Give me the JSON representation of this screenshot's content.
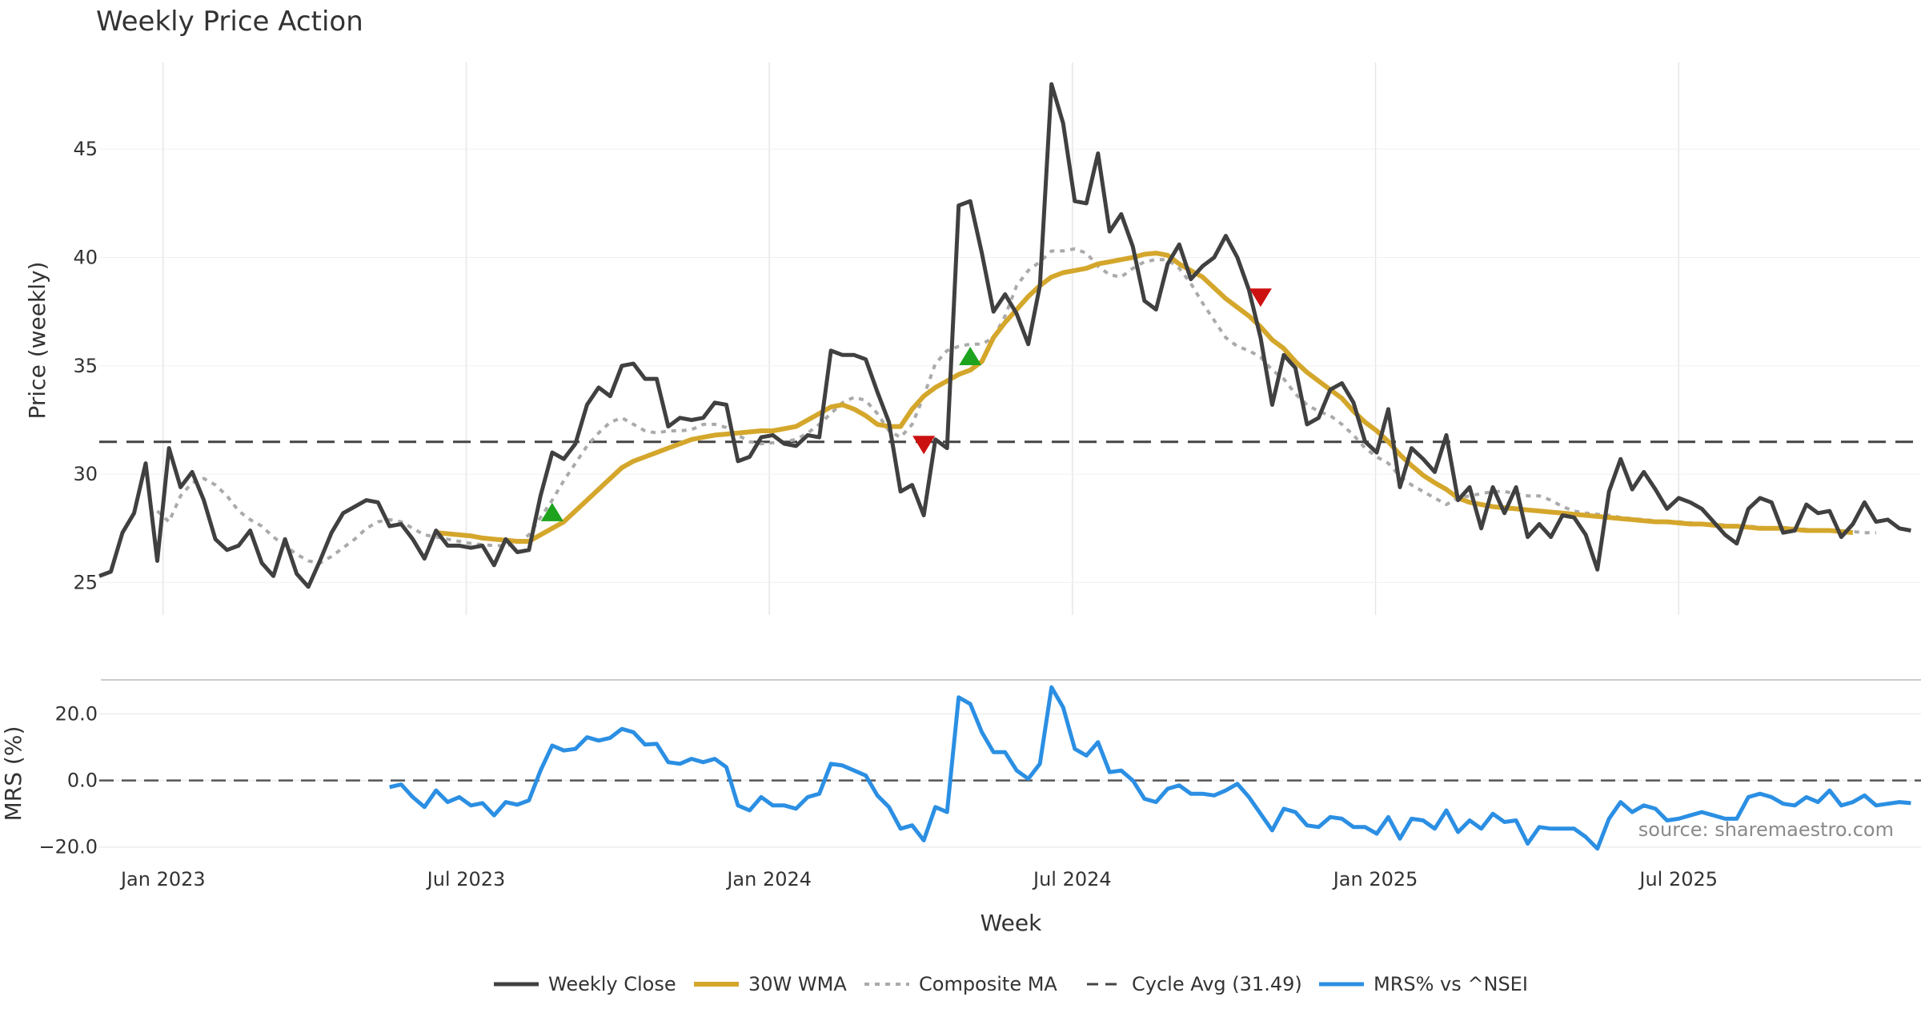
{
  "chart_data": {
    "type": "line",
    "title": "Weekly Price Action",
    "xlabel": "Week",
    "x_ticks": [
      "Jan 2023",
      "Jul 2023",
      "Jan 2024",
      "Jul 2024",
      "Jan 2025",
      "Jul 2025"
    ],
    "source": "source: sharemaestro.com",
    "colors": {
      "close": "#404040",
      "wma": "#d4a72c",
      "composite": "#aaaaaa",
      "cycle": "#444444",
      "mrs": "#2b8fe3",
      "buy": "#1ea31e",
      "sell": "#cc1111",
      "grid": "#e6e6e6"
    },
    "price_panel": {
      "ylabel": "Price (weekly)",
      "ylim": [
        23.5,
        49
      ],
      "y_ticks": [
        "25",
        "30",
        "35",
        "40",
        "45"
      ],
      "weekly_close": [
        25.3,
        25.5,
        27.3,
        28.2,
        30.5,
        26.0,
        31.2,
        29.4,
        30.1,
        28.8,
        27.0,
        26.5,
        26.7,
        27.4,
        25.9,
        25.3,
        27.0,
        25.4,
        24.8,
        26.0,
        27.3,
        28.2,
        28.5,
        28.8,
        28.7,
        27.6,
        27.7,
        27.0,
        26.1,
        27.4,
        26.7,
        26.7,
        26.6,
        26.7,
        25.8,
        27.0,
        26.4,
        26.5,
        29.0,
        31.0,
        30.7,
        31.4,
        33.2,
        34.0,
        33.6,
        35.0,
        35.1,
        34.4,
        34.4,
        32.2,
        32.6,
        32.5,
        32.6,
        33.3,
        33.2,
        30.6,
        30.8,
        31.7,
        31.8,
        31.4,
        31.3,
        31.8,
        31.7,
        35.7,
        35.5,
        35.5,
        35.3,
        33.8,
        32.4,
        29.2,
        29.5,
        28.1,
        31.6,
        31.2,
        42.4,
        42.6,
        40.2,
        37.5,
        38.3,
        37.4,
        36.0,
        38.7,
        48.0,
        46.2,
        42.6,
        42.5,
        44.8,
        41.2,
        42.0,
        40.5,
        38.0,
        37.6,
        39.7,
        40.6,
        39.0,
        39.6,
        40.0,
        41.0,
        40.0,
        38.5,
        36.3,
        33.2,
        35.5,
        34.9,
        32.3,
        32.6,
        33.9,
        34.2,
        33.3,
        31.5,
        31.0,
        33.0,
        29.4,
        31.2,
        30.7,
        30.1,
        31.8,
        28.8,
        29.4,
        27.5,
        29.4,
        28.2,
        29.4,
        27.1,
        27.7,
        27.1,
        28.1,
        28.0,
        27.2,
        25.6,
        29.2,
        30.7,
        29.3,
        30.1,
        29.3,
        28.4,
        28.9,
        28.7,
        28.4,
        27.8,
        27.2,
        26.8,
        28.4,
        28.9,
        28.7,
        27.3,
        27.4,
        28.6,
        28.2,
        28.3,
        27.1,
        27.7,
        28.7,
        27.8,
        27.9,
        27.5,
        27.4
      ],
      "wma_30w": [
        null,
        null,
        null,
        null,
        null,
        null,
        null,
        null,
        null,
        null,
        null,
        null,
        null,
        null,
        null,
        null,
        null,
        null,
        null,
        null,
        null,
        null,
        null,
        null,
        null,
        null,
        null,
        null,
        null,
        27.3,
        27.25,
        27.2,
        27.15,
        27.05,
        27.0,
        26.95,
        26.9,
        26.9,
        27.2,
        27.5,
        27.8,
        28.3,
        28.8,
        29.3,
        29.8,
        30.3,
        30.6,
        30.8,
        31.0,
        31.2,
        31.4,
        31.6,
        31.7,
        31.8,
        31.85,
        31.9,
        31.95,
        32.0,
        32.0,
        32.1,
        32.2,
        32.5,
        32.8,
        33.1,
        33.2,
        33.0,
        32.7,
        32.3,
        32.2,
        32.2,
        33.0,
        33.6,
        34.0,
        34.3,
        34.6,
        34.8,
        35.2,
        36.3,
        37.0,
        37.6,
        38.2,
        38.7,
        39.1,
        39.3,
        39.4,
        39.5,
        39.7,
        39.8,
        39.9,
        40.0,
        40.15,
        40.2,
        40.1,
        39.7,
        39.4,
        39.1,
        38.6,
        38.1,
        37.7,
        37.3,
        36.8,
        36.2,
        35.8,
        35.2,
        34.7,
        34.3,
        33.9,
        33.5,
        32.9,
        32.4,
        32.0,
        31.5,
        30.9,
        30.4,
        29.95,
        29.6,
        29.3,
        28.9,
        28.7,
        28.6,
        28.5,
        28.45,
        28.4,
        28.35,
        28.3,
        28.25,
        28.2,
        28.15,
        28.1,
        28.05,
        28.0,
        27.95,
        27.9,
        27.85,
        27.8,
        27.8,
        27.75,
        27.7,
        27.7,
        27.65,
        27.6,
        27.6,
        27.55,
        27.5,
        27.5,
        27.5,
        27.45,
        27.4,
        27.4,
        27.4,
        27.35,
        27.3
      ],
      "composite_ma": [
        null,
        null,
        null,
        null,
        null,
        28.3,
        27.8,
        29.0,
        29.6,
        29.8,
        29.5,
        29.0,
        28.3,
        27.9,
        27.6,
        27.1,
        26.7,
        26.3,
        26.0,
        25.9,
        26.2,
        26.6,
        27.0,
        27.5,
        27.8,
        27.9,
        27.8,
        27.5,
        27.2,
        27.1,
        27.0,
        26.9,
        26.8,
        26.75,
        26.7,
        26.7,
        26.8,
        27.2,
        28.0,
        28.8,
        29.7,
        30.5,
        31.3,
        31.9,
        32.4,
        32.6,
        32.3,
        32.0,
        31.9,
        32.0,
        32.0,
        32.05,
        32.3,
        32.3,
        32.15,
        31.8,
        31.5,
        31.4,
        31.45,
        31.5,
        31.6,
        31.9,
        32.3,
        32.8,
        33.3,
        33.55,
        33.4,
        32.8,
        32.0,
        31.7,
        32.3,
        33.6,
        35.1,
        35.7,
        35.9,
        36.0,
        36.0,
        36.3,
        37.3,
        38.7,
        39.4,
        39.8,
        40.3,
        40.3,
        40.4,
        40.2,
        39.6,
        39.2,
        39.1,
        39.5,
        39.8,
        39.9,
        39.9,
        39.5,
        38.8,
        37.9,
        37.1,
        36.3,
        35.9,
        35.7,
        35.4,
        34.8,
        34.4,
        33.7,
        33.2,
        32.9,
        32.7,
        32.3,
        31.8,
        31.2,
        30.8,
        30.5,
        29.9,
        29.5,
        29.2,
        28.9,
        28.6,
        28.9,
        29.0,
        29.1,
        29.2,
        29.2,
        29.1,
        29.0,
        29.0,
        28.8,
        28.5,
        28.3,
        28.2,
        28.15,
        28.1,
        28.0,
        27.95,
        27.9,
        27.85,
        27.8,
        27.8,
        27.75,
        27.7,
        27.7,
        27.65,
        27.6,
        27.6,
        27.55,
        27.5,
        27.5,
        27.5,
        27.45,
        27.4,
        27.4,
        27.4,
        27.35,
        27.3,
        27.3
      ],
      "cycle_avg": 31.49,
      "buy_signals": [
        {
          "week": 39,
          "price": 28.2
        },
        {
          "week": 75,
          "price": 35.4
        }
      ],
      "sell_signals": [
        {
          "week": 71,
          "price": 31.4
        },
        {
          "week": 100,
          "price": 38.2
        }
      ]
    },
    "mrs_panel": {
      "ylabel": "MRS (%)",
      "ylim": [
        -22,
        30
      ],
      "y_ticks": [
        "−20.0",
        "0.0",
        "20.0"
      ],
      "reference": 0,
      "start_week": 25,
      "mrs_vs_nsei": [
        -2.0,
        -1.2,
        -5.0,
        -8.0,
        -3.0,
        -6.5,
        -5.0,
        -7.5,
        -6.8,
        -10.5,
        -6.5,
        -7.3,
        -6.0,
        3.0,
        10.5,
        9.0,
        9.5,
        13.0,
        12.0,
        12.8,
        15.5,
        14.5,
        10.8,
        11.0,
        5.5,
        5.0,
        6.5,
        5.5,
        6.5,
        4.0,
        -7.5,
        -9.0,
        -5.0,
        -7.5,
        -7.5,
        -8.5,
        -5.0,
        -4.0,
        5.0,
        4.5,
        3.0,
        1.5,
        -4.5,
        -8.0,
        -14.5,
        -13.5,
        -18.0,
        -8.0,
        -9.5,
        25.0,
        23.0,
        14.5,
        8.5,
        8.5,
        3.0,
        0.5,
        5.0,
        28.0,
        22.0,
        9.5,
        7.5,
        11.5,
        2.5,
        3.0,
        0.0,
        -5.5,
        -6.5,
        -2.5,
        -1.5,
        -4.0,
        -4.0,
        -4.5,
        -3.0,
        -1.0,
        -5.0,
        -10.0,
        -15.0,
        -8.5,
        -9.5,
        -13.5,
        -14.0,
        -11.0,
        -11.5,
        -14.0,
        -14.0,
        -16.0,
        -11.0,
        -17.5,
        -11.5,
        -12.0,
        -14.5,
        -9.0,
        -15.5,
        -12.0,
        -14.5,
        -10.0,
        -12.5,
        -12.0,
        -19.0,
        -14.0,
        -14.5,
        -14.5,
        -14.5,
        -17.0,
        -20.5,
        -11.5,
        -6.5,
        -9.5,
        -7.5,
        -8.5,
        -12.0,
        -11.5,
        -10.5,
        -9.5,
        -10.5,
        -11.5,
        -11.5,
        -5.0,
        -4.0,
        -5.0,
        -7.0,
        -7.5,
        -5.0,
        -6.5,
        -3.0,
        -7.5,
        -6.5,
        -4.5,
        -7.5,
        -7.0,
        -6.5,
        -6.8
      ]
    },
    "legend": [
      "Weekly Close",
      "30W WMA",
      "Composite MA",
      "Cycle Avg (31.49)",
      "MRS% vs ^NSEI"
    ]
  }
}
